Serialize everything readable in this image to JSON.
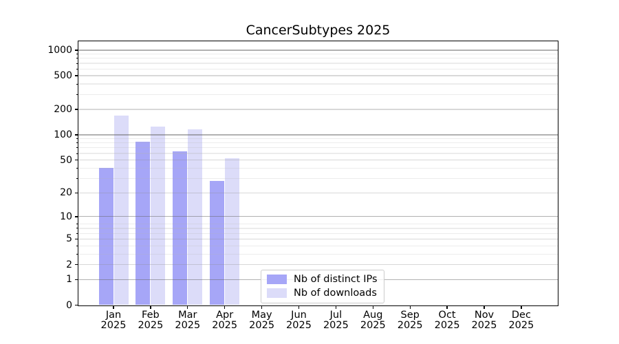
{
  "title": "CancerSubtypes 2025",
  "chart_data": {
    "type": "bar",
    "title": "CancerSubtypes 2025",
    "x_months": [
      "Jan",
      "Feb",
      "Mar",
      "Apr",
      "May",
      "Jun",
      "Jul",
      "Aug",
      "Sep",
      "Oct",
      "Nov",
      "Dec"
    ],
    "x_year": "2025",
    "series": [
      {
        "name": "Nb of distinct IPs",
        "color": "#a6a6f7",
        "values": [
          40,
          83,
          63,
          28,
          null,
          null,
          null,
          null,
          null,
          null,
          null,
          null
        ]
      },
      {
        "name": "Nb of downloads",
        "color": "#dcdcf9",
        "values": [
          170,
          126,
          116,
          53,
          null,
          null,
          null,
          null,
          null,
          null,
          null,
          null
        ]
      }
    ],
    "y_scale": "log10(value+1)",
    "y_ticks": [
      0,
      1,
      2,
      5,
      10,
      20,
      50,
      100,
      200,
      500,
      1000
    ],
    "y_major_gridlines": [
      1,
      10,
      100,
      1000
    ],
    "y_minor_gridlines": [
      3,
      4,
      6,
      7,
      8,
      30,
      40,
      60,
      70,
      80,
      90,
      300,
      400,
      600,
      700,
      800,
      900
    ],
    "ylim": [
      0,
      1320
    ],
    "grid": true,
    "legend_position": "lower center-left inside plot",
    "xlabel": "",
    "ylabel": ""
  },
  "colors": {
    "spine": "#000000",
    "text": "#000000",
    "legend_border": "#cccccc",
    "background": "#ffffff"
  }
}
